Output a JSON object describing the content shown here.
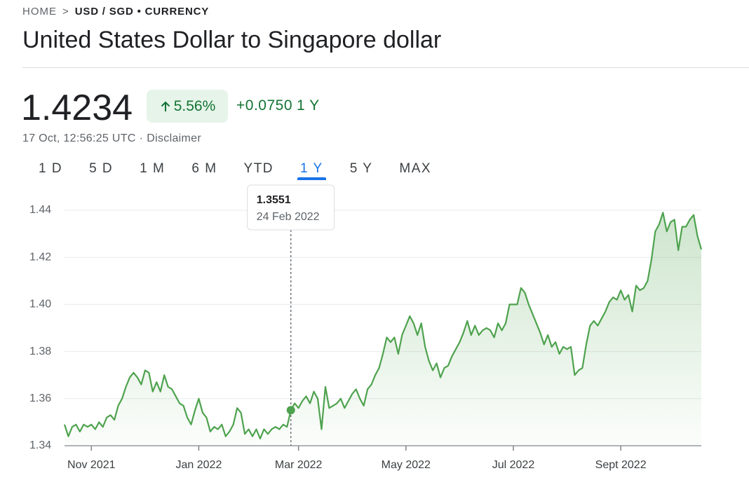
{
  "breadcrumb": {
    "home": "HOME",
    "separator": ">",
    "current": "USD / SGD • CURRENCY"
  },
  "header": {
    "title": "United States Dollar to Singapore dollar",
    "price": "1.4234",
    "change_percent": "5.56%",
    "change_abs": "+0.0750",
    "change_period": "1 Y",
    "timestamp": "17 Oct, 12:56:25 UTC",
    "separator": "·",
    "disclaimer": "Disclaimer"
  },
  "range_tabs": [
    "1 D",
    "5 D",
    "1 M",
    "6 M",
    "YTD",
    "1 Y",
    "5 Y",
    "MAX"
  ],
  "chart_data": {
    "type": "line",
    "color": "#4ea24e",
    "grid": true,
    "ylim": [
      1.34,
      1.44
    ],
    "yticks": [
      1.34,
      1.36,
      1.38,
      {
        "value": 1.4,
        "label": "1.40"
      },
      1.42,
      1.44
    ],
    "categories": [
      null,
      null,
      null,
      null,
      null,
      null,
      null,
      "Nov 2021",
      null,
      null,
      null,
      null,
      null,
      null,
      null,
      null,
      null,
      null,
      null,
      null,
      null,
      null,
      null,
      null,
      null,
      null,
      null,
      null,
      null,
      null,
      null,
      null,
      null,
      null,
      null,
      "Jan 2022",
      null,
      null,
      null,
      null,
      null,
      null,
      null,
      null,
      null,
      null,
      null,
      null,
      null,
      null,
      null,
      null,
      null,
      null,
      null,
      null,
      null,
      null,
      null,
      null,
      null,
      "Mar 2022",
      null,
      null,
      null,
      null,
      null,
      null,
      null,
      null,
      null,
      null,
      null,
      null,
      null,
      null,
      null,
      null,
      null,
      null,
      null,
      null,
      null,
      null,
      null,
      null,
      null,
      null,
      null,
      "May 2022",
      null,
      null,
      null,
      null,
      null,
      null,
      null,
      null,
      null,
      null,
      null,
      null,
      null,
      null,
      null,
      null,
      null,
      null,
      null,
      null,
      null,
      null,
      null,
      null,
      null,
      null,
      null,
      "Jul 2022",
      null,
      null,
      null,
      null,
      null,
      null,
      null,
      null,
      null,
      null,
      null,
      null,
      null,
      null,
      null,
      null,
      null,
      null,
      null,
      null,
      null,
      null,
      null,
      null,
      null,
      null,
      null,
      "Sept 2022",
      null,
      null,
      null,
      null,
      null,
      null,
      null,
      null,
      null,
      null,
      null,
      null,
      null,
      null,
      null,
      null,
      null,
      null,
      null,
      null,
      null
    ],
    "values": [
      1.349,
      1.344,
      1.348,
      1.349,
      1.346,
      1.349,
      1.348,
      1.349,
      1.347,
      1.35,
      1.348,
      1.352,
      1.353,
      1.351,
      1.357,
      1.36,
      1.365,
      1.369,
      1.371,
      1.369,
      1.366,
      1.372,
      1.371,
      1.363,
      1.367,
      1.363,
      1.37,
      1.365,
      1.364,
      1.361,
      1.358,
      1.357,
      1.352,
      1.349,
      1.355,
      1.36,
      1.354,
      1.352,
      1.346,
      1.348,
      1.347,
      1.349,
      1.344,
      1.346,
      1.349,
      1.356,
      1.354,
      1.345,
      1.347,
      1.344,
      1.347,
      1.343,
      1.347,
      1.345,
      1.347,
      1.348,
      1.347,
      1.349,
      1.348,
      1.3551,
      1.358,
      1.356,
      1.359,
      1.361,
      1.358,
      1.363,
      1.36,
      1.347,
      1.365,
      1.356,
      1.357,
      1.358,
      1.36,
      1.356,
      1.359,
      1.362,
      1.364,
      1.36,
      1.357,
      1.364,
      1.366,
      1.37,
      1.373,
      1.379,
      1.386,
      1.384,
      1.386,
      1.379,
      1.387,
      1.391,
      1.395,
      1.392,
      1.387,
      1.392,
      1.382,
      1.376,
      1.372,
      1.375,
      1.369,
      1.373,
      1.374,
      1.378,
      1.381,
      1.384,
      1.388,
      1.393,
      1.387,
      1.391,
      1.387,
      1.389,
      1.39,
      1.389,
      1.386,
      1.392,
      1.389,
      1.392,
      1.4,
      1.4,
      1.4,
      1.407,
      1.405,
      1.4,
      1.396,
      1.392,
      1.388,
      1.383,
      1.387,
      1.382,
      1.384,
      1.379,
      1.382,
      1.381,
      1.382,
      1.37,
      1.372,
      1.373,
      1.383,
      1.391,
      1.393,
      1.391,
      1.394,
      1.397,
      1.401,
      1.403,
      1.402,
      1.406,
      1.402,
      1.404,
      1.397,
      1.408,
      1.406,
      1.407,
      1.41,
      1.419,
      1.431,
      1.434,
      1.439,
      1.431,
      1.435,
      1.436,
      1.423,
      1.433,
      1.433,
      1.436,
      1.438,
      1.429,
      1.4234
    ],
    "tooltip": {
      "value": 1.3551,
      "date": "24 Feb 2022"
    }
  }
}
